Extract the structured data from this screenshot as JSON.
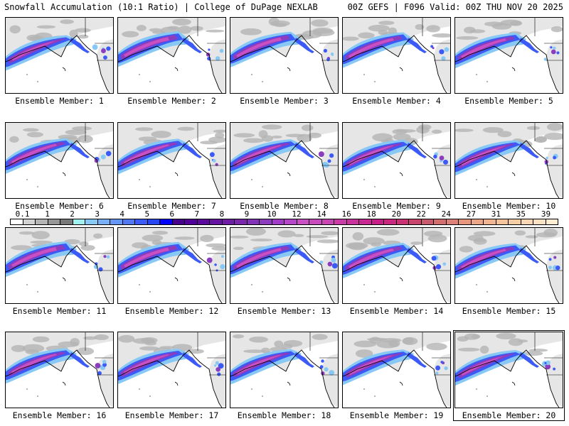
{
  "header": {
    "left_title": "Snowfall Accumulation (10:1 Ratio) | College of DuPage NEXLAB",
    "right_title": "00Z GEFS | F096 Valid: 00Z THU NOV 20 2025"
  },
  "members": [
    {
      "label": "Ensemble Member: 1"
    },
    {
      "label": "Ensemble Member: 2"
    },
    {
      "label": "Ensemble Member: 3"
    },
    {
      "label": "Ensemble Member: 4"
    },
    {
      "label": "Ensemble Member: 5"
    },
    {
      "label": "Ensemble Member: 6"
    },
    {
      "label": "Ensemble Member: 7"
    },
    {
      "label": "Ensemble Member: 8"
    },
    {
      "label": "Ensemble Member: 9"
    },
    {
      "label": "Ensemble Member: 10"
    },
    {
      "label": "Ensemble Member: 11"
    },
    {
      "label": "Ensemble Member: 12"
    },
    {
      "label": "Ensemble Member: 13"
    },
    {
      "label": "Ensemble Member: 14"
    },
    {
      "label": "Ensemble Member: 15"
    },
    {
      "label": "Ensemble Member: 16"
    },
    {
      "label": "Ensemble Member: 17"
    },
    {
      "label": "Ensemble Member: 18"
    },
    {
      "label": "Ensemble Member: 19"
    },
    {
      "label": "Ensemble Member: 20",
      "selected": true
    }
  ],
  "colorbar": {
    "tick_labels": [
      "0.1",
      "1",
      "2",
      "3",
      "4",
      "5",
      "6",
      "7",
      "8",
      "9",
      "10",
      "12",
      "14",
      "16",
      "18",
      "20",
      "22",
      "24",
      "27",
      "31",
      "35",
      "39"
    ],
    "colors": [
      "#ffffff",
      "#d2d2d2",
      "#b4b4b4",
      "#969696",
      "#787878",
      "#a0f0f0",
      "#87c8f5",
      "#78aff5",
      "#6496f5",
      "#5078f5",
      "#3c5af5",
      "#2846f0",
      "#0000ff",
      "#46008c",
      "#500096",
      "#5a0a9b",
      "#6414a0",
      "#6e1ea5",
      "#7828aa",
      "#8232b4",
      "#8c3cbe",
      "#a03cc8",
      "#b446c8",
      "#c850c3",
      "#c84bbe",
      "#c846b4",
      "#c83ca5",
      "#c8329b",
      "#c82891",
      "#c81e87",
      "#c8287d",
      "#c83273",
      "#c8466e",
      "#c85a6e",
      "#d26e6e",
      "#dc8278",
      "#e6967d",
      "#eba587",
      "#f0b491",
      "#f5c39b",
      "#f5cda5",
      "#fad7b4",
      "#fae1c3",
      "#fdebd2"
    ]
  },
  "map_colors": {
    "ocean": "#ffffff",
    "land_light": "#e6e6e6",
    "land_gray": "#b4b4b4",
    "snow_light_blue": "#87c8f5",
    "snow_blue": "#3c5af5",
    "snow_purple": "#8c3cbe",
    "snow_magenta": "#c850c3",
    "coast": "#000000"
  }
}
